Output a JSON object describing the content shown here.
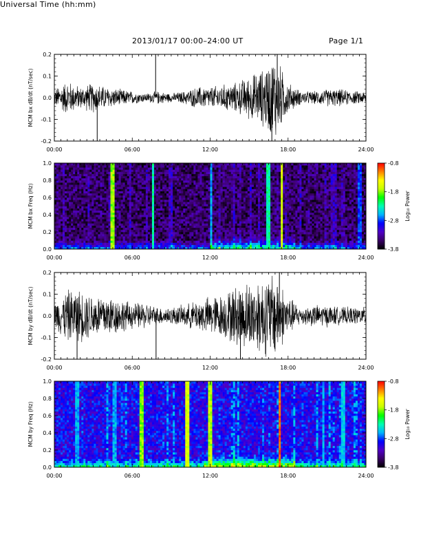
{
  "header": {
    "title": "2013/01/17  00:00–24:00 UT",
    "page": "Page 1/1"
  },
  "footer": {
    "xlabel": "Universal Time (hh:mm)"
  },
  "colorbar": {
    "label": "Log₁₀ Power",
    "ticks": [
      "-0.8",
      "-1.8",
      "-2.8",
      "-3.8"
    ],
    "range": [
      -3.8,
      -0.8
    ],
    "colormap": [
      "#000000",
      "#3a0066",
      "#5000c8",
      "#0000ff",
      "#00b4ff",
      "#00ffb4",
      "#00ff00",
      "#c8ff00",
      "#ffff00",
      "#ff8000",
      "#ff0000"
    ]
  },
  "chart_data": [
    {
      "type": "line",
      "title": "",
      "ylabel": "MCM bx dB/dt (nT/sec)",
      "xlabel": "",
      "xlim": [
        "00:00",
        "24:00"
      ],
      "x_ticks": [
        "00:00",
        "06:00",
        "12:00",
        "18:00",
        "24:00"
      ],
      "ylim": [
        -0.2,
        0.2
      ],
      "y_ticks": [
        "-0.2",
        "-0.1",
        "0.0",
        "0.1",
        "0.2"
      ],
      "envelope_hours": [
        0,
        1,
        2,
        3,
        4,
        5,
        6,
        7,
        8,
        9,
        10,
        11,
        12,
        13,
        14,
        15,
        16,
        17,
        18,
        19,
        20,
        21,
        22,
        23,
        24
      ],
      "envelope_amplitude": [
        0.04,
        0.08,
        0.05,
        0.07,
        0.05,
        0.04,
        0.03,
        0.02,
        0.03,
        0.02,
        0.03,
        0.05,
        0.05,
        0.06,
        0.07,
        0.1,
        0.13,
        0.2,
        0.07,
        0.03,
        0.03,
        0.04,
        0.04,
        0.03,
        0.03
      ],
      "spikes": [
        {
          "time": "03:18",
          "value": -0.2
        },
        {
          "time": "07:48",
          "value": 0.2
        },
        {
          "time": "16:45",
          "value": -0.2
        },
        {
          "time": "17:10",
          "value": 0.2
        }
      ]
    },
    {
      "type": "heatmap",
      "ylabel": "MCM bx Freq (Hz)",
      "xlim": [
        "00:00",
        "24:00"
      ],
      "x_ticks": [
        "00:00",
        "06:00",
        "12:00",
        "18:00",
        "24:00"
      ],
      "ylim": [
        0.0,
        1.0
      ],
      "y_ticks": [
        "0.0",
        "0.2",
        "0.4",
        "0.6",
        "0.8",
        "1.0"
      ],
      "zlabel": "Log₁₀ Power",
      "zlim": [
        -3.8,
        -0.8
      ],
      "background_log_power": -3.5,
      "low_freq_enhancement_hours": [
        [
          12.0,
          18.5
        ]
      ],
      "bright_vertical_lines": [
        {
          "time": "04:30",
          "log_power": -1.8
        },
        {
          "time": "07:35",
          "log_power": -2.3
        },
        {
          "time": "12:05",
          "log_power": -2.6
        },
        {
          "time": "16:30",
          "log_power": -2.3
        },
        {
          "time": "17:30",
          "log_power": -1.6
        },
        {
          "time": "23:30",
          "log_power": -2.8
        }
      ]
    },
    {
      "type": "line",
      "title": "",
      "ylabel": "MCM by dB/dt (nT/sec)",
      "xlabel": "",
      "xlim": [
        "00:00",
        "24:00"
      ],
      "x_ticks": [
        "00:00",
        "06:00",
        "12:00",
        "18:00",
        "24:00"
      ],
      "ylim": [
        -0.2,
        0.2
      ],
      "y_ticks": [
        "-0.2",
        "-0.1",
        "0.0",
        "0.1",
        "0.2"
      ],
      "envelope_hours": [
        0,
        1,
        2,
        3,
        4,
        5,
        6,
        7,
        8,
        9,
        10,
        11,
        12,
        13,
        14,
        15,
        16,
        17,
        18,
        19,
        20,
        21,
        22,
        23,
        24
      ],
      "envelope_amplitude": [
        0.06,
        0.12,
        0.12,
        0.1,
        0.1,
        0.08,
        0.06,
        0.06,
        0.04,
        0.04,
        0.05,
        0.07,
        0.09,
        0.1,
        0.14,
        0.16,
        0.18,
        0.2,
        0.09,
        0.04,
        0.05,
        0.05,
        0.04,
        0.04,
        0.04
      ],
      "spikes": [
        {
          "time": "01:45",
          "value": -0.2
        },
        {
          "time": "07:50",
          "value": -0.2
        },
        {
          "time": "14:20",
          "value": -0.2
        },
        {
          "time": "17:20",
          "value": 0.2
        }
      ]
    },
    {
      "type": "heatmap",
      "ylabel": "MCM by Freq (Hz)",
      "xlim": [
        "00:00",
        "24:00"
      ],
      "x_ticks": [
        "00:00",
        "06:00",
        "12:00",
        "18:00",
        "24:00"
      ],
      "ylim": [
        0.0,
        1.0
      ],
      "y_ticks": [
        "0.0",
        "0.2",
        "0.4",
        "0.6",
        "0.8",
        "1.0"
      ],
      "zlabel": "Log₁₀ Power",
      "zlim": [
        -3.8,
        -0.8
      ],
      "background_log_power": -3.0,
      "low_freq_enhancement_hours": [
        [
          11.5,
          18.5
        ]
      ],
      "bright_vertical_lines": [
        {
          "time": "01:45",
          "log_power": -2.6
        },
        {
          "time": "04:40",
          "log_power": -2.6
        },
        {
          "time": "06:45",
          "log_power": -1.8
        },
        {
          "time": "10:15",
          "log_power": -1.6
        },
        {
          "time": "12:00",
          "log_power": -1.7
        },
        {
          "time": "17:20",
          "log_power": -1.0
        },
        {
          "time": "20:45",
          "log_power": -2.6
        },
        {
          "time": "22:15",
          "log_power": -2.5
        }
      ]
    }
  ]
}
